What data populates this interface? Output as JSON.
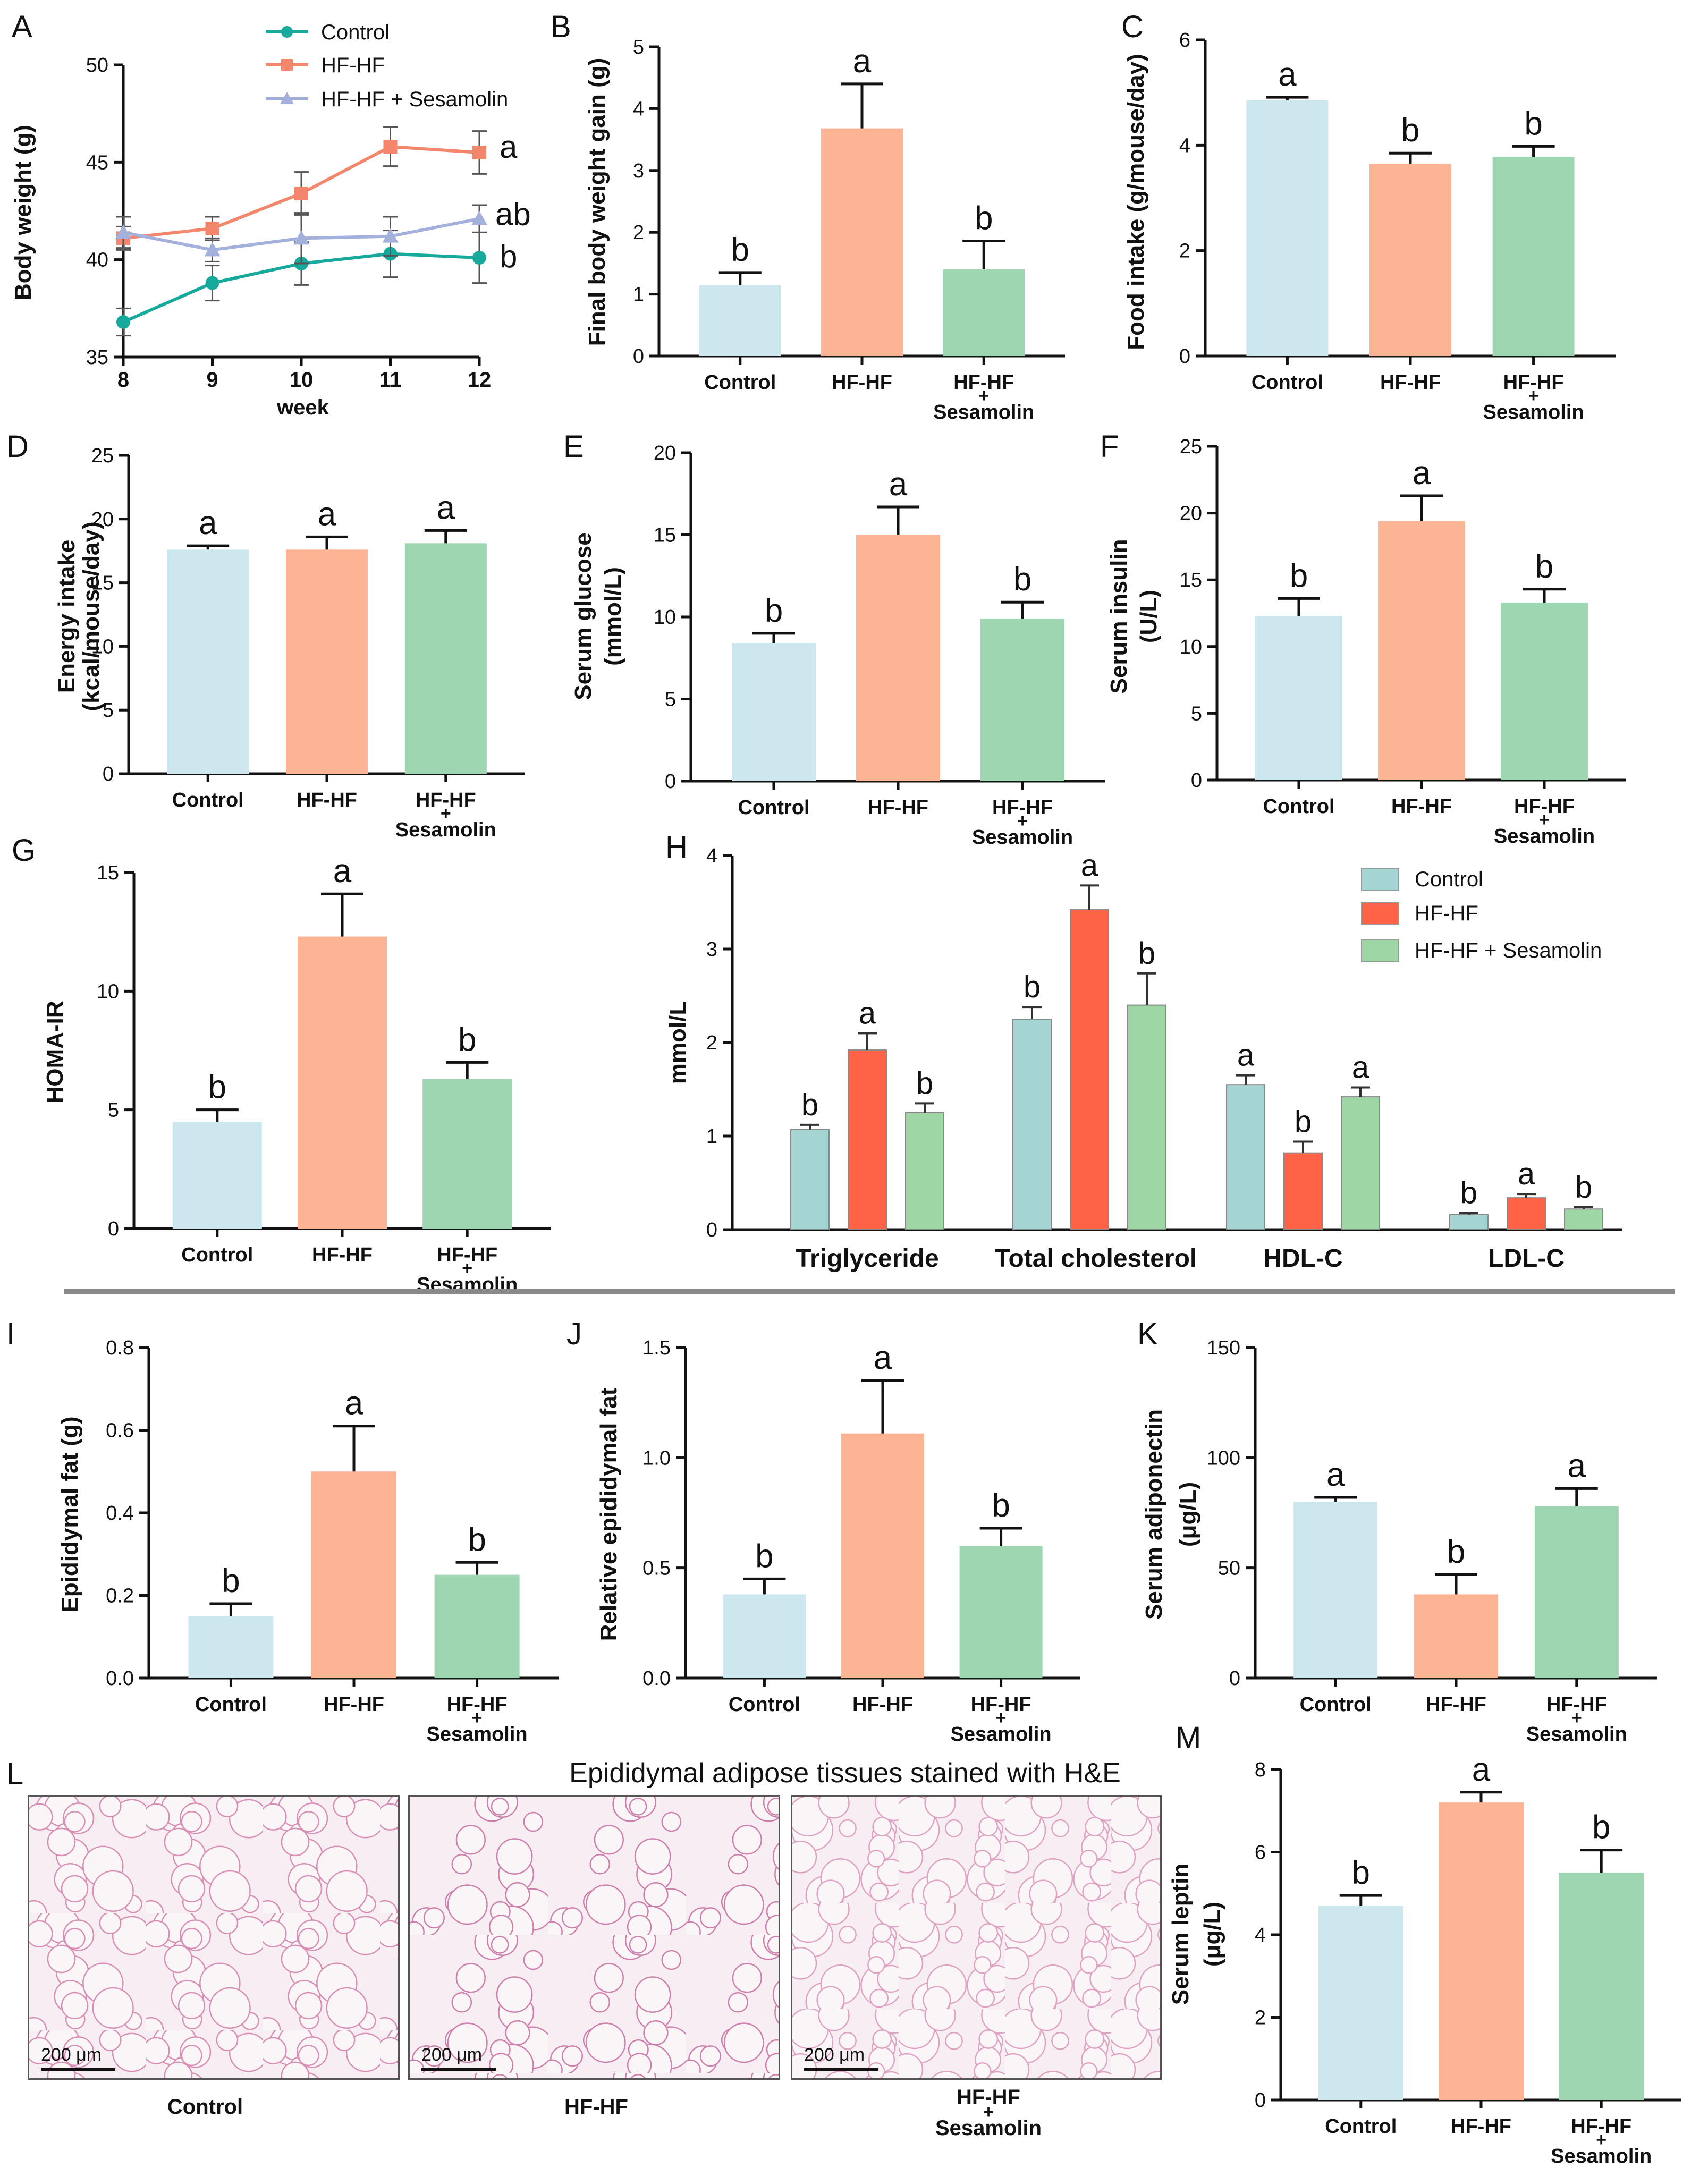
{
  "groups": {
    "control": "Control",
    "hfhf": "HF-HF",
    "sesamolin_line1": "HF-HF",
    "plus": "+",
    "sesamolin_line2": "Sesamolin"
  },
  "colors": {
    "control_bar": "#cce8ee",
    "hfhf_bar": "#fcb494",
    "ses_bar": "#9ed6b2",
    "control_line": "#17a99b",
    "hfhf_line": "#f4866c",
    "ses_line": "#a3b0dc",
    "h_control": "#a5d5d2",
    "h_hfhf": "#ff6347",
    "h_ses": "#9ed6a6"
  },
  "chart_data": [
    {
      "panel": "A",
      "type": "line",
      "xlabel": "week",
      "ylabel": "Body weight (g)",
      "x": [
        8,
        9,
        10,
        11,
        12
      ],
      "xlim": [
        8,
        12
      ],
      "ylim": [
        35,
        50
      ],
      "yticks": [
        35,
        40,
        45,
        50
      ],
      "legend": [
        "Control",
        "HF-HF",
        "HF-HF + Sesamolin"
      ],
      "legend_position": "top",
      "series": [
        {
          "name": "Control",
          "values": [
            36.8,
            38.8,
            39.8,
            40.3,
            40.1
          ],
          "errors": [
            0.7,
            0.9,
            1.1,
            1.2,
            1.3
          ],
          "label": "b"
        },
        {
          "name": "HF-HF",
          "values": [
            41.1,
            41.6,
            43.4,
            45.8,
            45.5
          ],
          "errors": [
            0.6,
            0.6,
            1.1,
            1.0,
            1.1
          ],
          "label": "a"
        },
        {
          "name": "HF-HF + Sesamolin",
          "values": [
            41.4,
            40.5,
            41.1,
            41.2,
            42.1
          ],
          "errors": [
            0.8,
            0.6,
            1.3,
            1.0,
            0.7
          ],
          "label": "ab"
        }
      ]
    },
    {
      "panel": "B",
      "type": "bar",
      "ylabel": "Final body weight gain (g)",
      "ylim": [
        0,
        5
      ],
      "yticks": [
        0,
        1,
        2,
        3,
        4,
        5
      ],
      "values": [
        1.15,
        3.68,
        1.4
      ],
      "errors": [
        0.2,
        0.72,
        0.46
      ],
      "labels": [
        "b",
        "a",
        "b"
      ]
    },
    {
      "panel": "C",
      "type": "bar",
      "ylabel": "Food intake (g/mouse/day)",
      "ylim": [
        0,
        6
      ],
      "yticks": [
        0,
        2,
        4,
        6
      ],
      "values": [
        4.85,
        3.65,
        3.78
      ],
      "errors": [
        0.06,
        0.2,
        0.2
      ],
      "labels": [
        "a",
        "b",
        "b"
      ]
    },
    {
      "panel": "D",
      "type": "bar",
      "ylabel": "Energy intake (kcal/mouse/day)",
      "ylim": [
        0,
        25
      ],
      "yticks": [
        0,
        5,
        10,
        15,
        20,
        25
      ],
      "values": [
        17.6,
        17.6,
        18.1
      ],
      "errors": [
        0.3,
        1.0,
        1.0
      ],
      "labels": [
        "a",
        "a",
        "a"
      ]
    },
    {
      "panel": "E",
      "type": "bar",
      "ylabel": "Serum glucose (mmol/L)",
      "ylim": [
        0,
        20
      ],
      "yticks": [
        0,
        5,
        10,
        15,
        20
      ],
      "values": [
        8.4,
        15.0,
        9.9
      ],
      "errors": [
        0.6,
        1.7,
        1.0
      ],
      "labels": [
        "b",
        "a",
        "b"
      ]
    },
    {
      "panel": "F",
      "type": "bar",
      "ylabel": "Serum insulin (U/L)",
      "ylim": [
        0,
        25
      ],
      "yticks": [
        0,
        5,
        10,
        15,
        20,
        25
      ],
      "values": [
        12.3,
        19.4,
        13.3
      ],
      "errors": [
        1.3,
        1.9,
        1.0
      ],
      "labels": [
        "b",
        "a",
        "b"
      ]
    },
    {
      "panel": "G",
      "type": "bar",
      "ylabel": "HOMA-IR",
      "ylim": [
        0,
        15
      ],
      "yticks": [
        0,
        5,
        10,
        15
      ],
      "values": [
        4.5,
        12.3,
        6.3
      ],
      "errors": [
        0.5,
        1.8,
        0.7
      ],
      "labels": [
        "b",
        "a",
        "b"
      ]
    },
    {
      "panel": "H",
      "type": "bar",
      "ylabel": "mmol/L",
      "ylim": [
        0,
        4
      ],
      "yticks": [
        0,
        1,
        2,
        3,
        4
      ],
      "categories": [
        "Triglyceride",
        "Total cholesterol",
        "HDL-C",
        "LDL-C"
      ],
      "legend": [
        "Control",
        "HF-HF",
        "HF-HF + Sesamolin"
      ],
      "legend_position": "top-right",
      "series": [
        {
          "name": "Control",
          "values": [
            1.07,
            2.25,
            1.55,
            0.16
          ],
          "errors": [
            0.05,
            0.13,
            0.1,
            0.02
          ],
          "labels": [
            "b",
            "b",
            "a",
            "b"
          ]
        },
        {
          "name": "HF-HF",
          "values": [
            1.92,
            3.42,
            0.82,
            0.34
          ],
          "errors": [
            0.18,
            0.26,
            0.12,
            0.04
          ],
          "labels": [
            "a",
            "a",
            "b",
            "a"
          ]
        },
        {
          "name": "HF-HF + Sesamolin",
          "values": [
            1.25,
            2.4,
            1.42,
            0.22
          ],
          "errors": [
            0.1,
            0.34,
            0.1,
            0.02
          ],
          "labels": [
            "b",
            "b",
            "a",
            "b"
          ]
        }
      ]
    },
    {
      "panel": "I",
      "type": "bar",
      "ylabel": "Epididymal fat (g)",
      "ylim": [
        0,
        0.8
      ],
      "yticks": [
        "0.0",
        "0.2",
        "0.4",
        "0.6",
        "0.8"
      ],
      "values": [
        0.15,
        0.5,
        0.25
      ],
      "errors": [
        0.03,
        0.11,
        0.03
      ],
      "labels": [
        "b",
        "a",
        "b"
      ]
    },
    {
      "panel": "J",
      "type": "bar",
      "ylabel": "Relative epididymal fat",
      "ylim": [
        0,
        1.5
      ],
      "yticks": [
        "0.0",
        "0.5",
        "1.0",
        "1.5"
      ],
      "values": [
        0.38,
        1.11,
        0.6
      ],
      "errors": [
        0.07,
        0.24,
        0.08
      ],
      "labels": [
        "b",
        "a",
        "b"
      ]
    },
    {
      "panel": "K",
      "type": "bar",
      "ylabel": "Serum adiponectin (μg/L)",
      "ylim": [
        0,
        150
      ],
      "yticks": [
        0,
        50,
        100,
        150
      ],
      "values": [
        80,
        38,
        78
      ],
      "errors": [
        2,
        9,
        8
      ],
      "labels": [
        "a",
        "b",
        "a"
      ]
    },
    {
      "panel": "M",
      "type": "bar",
      "ylabel": "Serum leptin (μg/L)",
      "ylim": [
        0,
        8
      ],
      "yticks": [
        0,
        2,
        4,
        6,
        8
      ],
      "values": [
        4.7,
        7.2,
        5.5
      ],
      "errors": [
        0.25,
        0.25,
        0.55
      ],
      "labels": [
        "b",
        "a",
        "b"
      ]
    }
  ],
  "panel_L": {
    "letter": "L",
    "title": "Epididymal adipose tissues stained with H&E",
    "scale_bar": "200 μm",
    "captions": [
      "Control",
      "HF-HF",
      "HF-HF",
      "+",
      "Sesamolin"
    ]
  }
}
